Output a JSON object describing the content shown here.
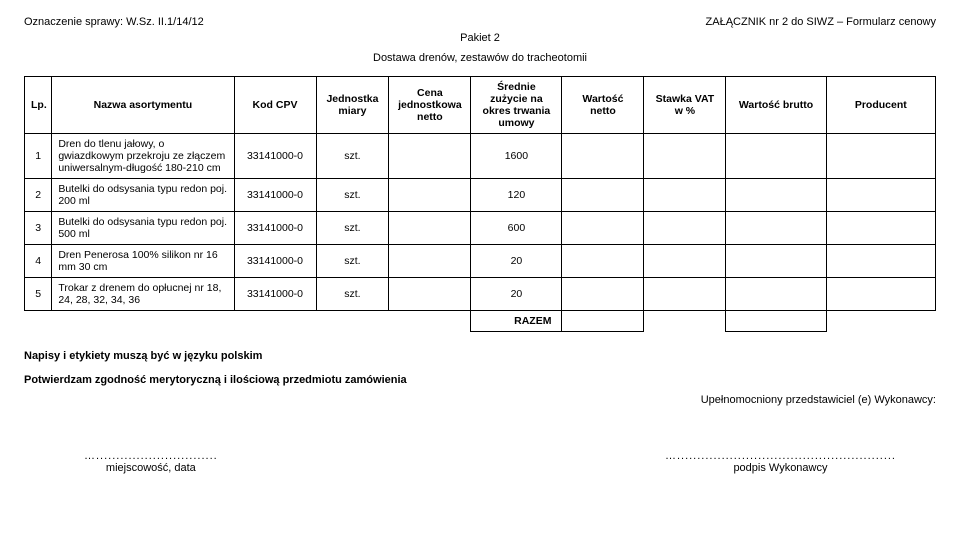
{
  "header": {
    "case_label": "Oznaczenie sprawy: W.Sz. II.1/14/12",
    "attachment": "ZAŁĄCZNIK nr 2 do SIWZ – Formularz cenowy",
    "pakiet": "Pakiet 2",
    "subtitle": "Dostawa drenów, zestawów do tracheotomii"
  },
  "table": {
    "columns": [
      "Lp.",
      "Nazwa asortymentu",
      "Kod CPV",
      "Jednostka miary",
      "Cena jednostkowa netto",
      "Średnie zużycie na okres trwania umowy",
      "Wartość netto",
      "Stawka VAT w %",
      "Wartość brutto",
      "Producent"
    ],
    "rows": [
      {
        "lp": "1",
        "name": "Dren do tlenu jałowy, o gwiazdkowym przekroju ze złączem uniwersalnym-długość 180-210 cm",
        "cpv": "33141000-0",
        "unit": "szt.",
        "avg": "1600"
      },
      {
        "lp": "2",
        "name": "Butelki do odsysania typu redon poj. 200 ml",
        "cpv": "33141000-0",
        "unit": "szt.",
        "avg": "120"
      },
      {
        "lp": "3",
        "name": "Butelki do odsysania typu redon poj. 500 ml",
        "cpv": "33141000-0",
        "unit": "szt.",
        "avg": "600"
      },
      {
        "lp": "4",
        "name": "Dren Penerosa 100% silikon nr 16 mm 30 cm",
        "cpv": "33141000-0",
        "unit": "szt.",
        "avg": "20"
      },
      {
        "lp": "5",
        "name": "Trokar z drenem do opłucnej nr 18, 24, 28, 32, 34, 36",
        "cpv": "33141000-0",
        "unit": "szt.",
        "avg": "20"
      }
    ],
    "razem": "RAZEM"
  },
  "notes": {
    "line1": "Napisy i etykiety muszą być w języku polskim",
    "line2": "Potwierdzam zgodność merytoryczną i ilościową przedmiotu zamówienia",
    "rep": "Upełnomocniony przedstawiciel (e) Wykonawcy:"
  },
  "signatures": {
    "left_dots": "…..............................",
    "left_label": "miejscowość, data",
    "right_dots": "…......................................................",
    "right_label": "podpis Wykonawcy"
  }
}
